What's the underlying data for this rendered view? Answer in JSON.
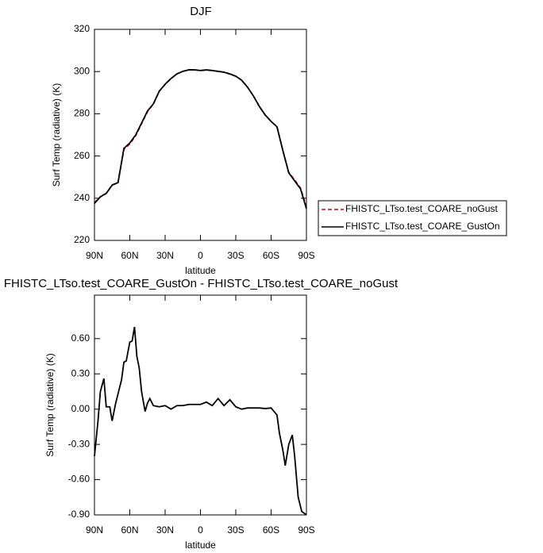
{
  "chart_data": [
    {
      "type": "line",
      "title": "DJF",
      "xlabel": "latitude",
      "ylabel": "Surf Temp (radiative) (K)",
      "x": [
        90,
        85,
        80,
        75,
        70,
        65,
        60,
        55,
        50,
        45,
        40,
        35,
        30,
        25,
        20,
        15,
        10,
        5,
        0,
        -5,
        -10,
        -15,
        -20,
        -25,
        -30,
        -35,
        -40,
        -45,
        -50,
        -55,
        -60,
        -65,
        -70,
        -75,
        -80,
        -85,
        -90
      ],
      "series": [
        {
          "name": "FHISTC_LTso.test_COARE_noGust",
          "color": "#d00000",
          "dash": true,
          "values": [
            237.9,
            240.6,
            242.2,
            246.3,
            247.3,
            263.2,
            265.7,
            269.6,
            275.3,
            281.0,
            284.6,
            290.6,
            293.9,
            296.7,
            298.9,
            300.1,
            300.8,
            300.8,
            300.5,
            300.7,
            300.5,
            300.1,
            299.7,
            298.8,
            297.8,
            295.9,
            292.6,
            288.4,
            283.5,
            279.4,
            276.4,
            273.8,
            262.6,
            252.2,
            248.6,
            244.8,
            235.9
          ]
        },
        {
          "name": "FHISTC_LTso.test_COARE_GustOn",
          "color": "#000000",
          "dash": false,
          "values": [
            237.5,
            240.7,
            242.3,
            246.2,
            247.4,
            263.6,
            266.2,
            270.0,
            275.6,
            281.3,
            284.7,
            290.7,
            294.0,
            296.7,
            298.9,
            300.1,
            300.8,
            300.8,
            300.5,
            300.8,
            300.5,
            300.1,
            299.7,
            298.9,
            297.8,
            295.9,
            292.6,
            288.4,
            283.5,
            279.4,
            276.4,
            273.8,
            262.5,
            252.0,
            248.2,
            244.4,
            235.0
          ]
        }
      ],
      "xlim": [
        90,
        -90
      ],
      "xticks": [
        {
          "value": 90,
          "label": "90N"
        },
        {
          "value": 60,
          "label": "60N"
        },
        {
          "value": 30,
          "label": "30N"
        },
        0,
        {
          "value": -30,
          "label": "30S"
        },
        {
          "value": -60,
          "label": "60S"
        },
        {
          "value": -90,
          "label": "90S"
        }
      ],
      "ylim": [
        220,
        320
      ],
      "yticks": [
        220,
        240,
        260,
        280,
        300,
        320
      ],
      "legend": "outside-right"
    },
    {
      "type": "line",
      "title": "FHISTC_LTso.test_COARE_GustOn - FHISTC_LTso.test_COARE_noGust",
      "xlabel": "latitude",
      "ylabel": "Surf Temp (radiative) (K)",
      "x": [
        90,
        87,
        85,
        82,
        80,
        77,
        75,
        72,
        70,
        67,
        65,
        63,
        60,
        58,
        56,
        54,
        52,
        50,
        47,
        45,
        43,
        40,
        35,
        30,
        25,
        20,
        15,
        10,
        5,
        0,
        -5,
        -10,
        -15,
        -20,
        -25,
        -30,
        -35,
        -40,
        -45,
        -50,
        -55,
        -60,
        -65,
        -67,
        -70,
        -72,
        -75,
        -78,
        -80,
        -83,
        -86,
        -90
      ],
      "series": [
        {
          "color": "#000000",
          "dash": false,
          "values": [
            -0.4,
            -0.1,
            0.15,
            0.26,
            0.02,
            0.02,
            -0.1,
            0.05,
            0.13,
            0.25,
            0.4,
            0.41,
            0.57,
            0.58,
            0.7,
            0.45,
            0.35,
            0.15,
            -0.02,
            0.05,
            0.09,
            0.03,
            0.02,
            0.03,
            0.0,
            0.03,
            0.03,
            0.04,
            0.04,
            0.04,
            0.06,
            0.03,
            0.09,
            0.03,
            0.08,
            0.02,
            0.0,
            0.01,
            0.01,
            0.01,
            0.005,
            0.01,
            -0.05,
            -0.2,
            -0.35,
            -0.48,
            -0.3,
            -0.22,
            -0.4,
            -0.75,
            -0.87,
            -0.9
          ]
        }
      ],
      "xlim": [
        90,
        -90
      ],
      "xticks": [
        {
          "value": 90,
          "label": "90N"
        },
        {
          "value": 60,
          "label": "60N"
        },
        {
          "value": 30,
          "label": "30N"
        },
        0,
        {
          "value": -30,
          "label": "30S"
        },
        {
          "value": -60,
          "label": "60S"
        },
        {
          "value": -90,
          "label": "90S"
        }
      ],
      "ylim": [
        -0.9,
        0.97
      ],
      "yticks": [
        {
          "value": -0.9,
          "label": "-0.90"
        },
        {
          "value": -0.6,
          "label": "-0.60"
        },
        {
          "value": -0.3,
          "label": "-0.30"
        },
        {
          "value": 0,
          "label": "0.00"
        },
        {
          "value": 0.3,
          "label": "0.30"
        },
        {
          "value": 0.6,
          "label": "0.60"
        }
      ]
    }
  ]
}
